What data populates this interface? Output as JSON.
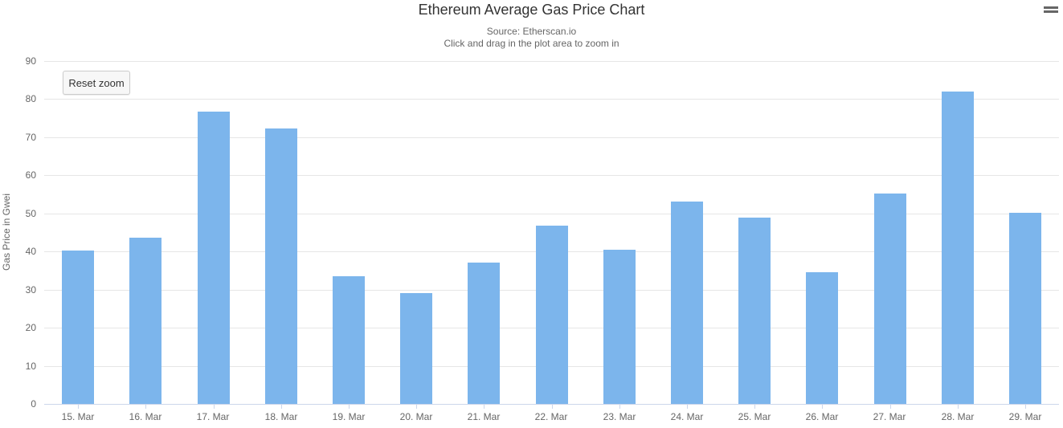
{
  "toolbar": {
    "reset_zoom_label": "Reset zoom",
    "menu_icon": "hamburger-icon"
  },
  "chart_data": {
    "type": "bar",
    "title": "Ethereum Average Gas Price Chart",
    "subtitle": [
      "Source: Etherscan.io",
      "Click and drag in the plot area to zoom in"
    ],
    "categories": [
      "15. Mar",
      "16. Mar",
      "17. Mar",
      "18. Mar",
      "19. Mar",
      "20. Mar",
      "21. Mar",
      "22. Mar",
      "23. Mar",
      "24. Mar",
      "25. Mar",
      "26. Mar",
      "27. Mar",
      "28. Mar",
      "29. Mar"
    ],
    "values": [
      40.2,
      43.6,
      76.8,
      72.3,
      33.5,
      29.1,
      37.1,
      46.8,
      40.4,
      53.2,
      48.8,
      34.5,
      55.2,
      82.0,
      50.2
    ],
    "xlabel": "",
    "ylabel": "Gas Price in Gwei",
    "ylim": [
      0,
      90
    ],
    "ytick_step": 10,
    "grid": true,
    "legend": "none",
    "colors": {
      "bar": "#7cb5ec",
      "title": "#333333",
      "subtitle": "#666666",
      "axis_labels": "#666666",
      "gridline": "#e6e6e6",
      "axis_line": "#ccd6eb",
      "menu_icon": "#666666"
    }
  }
}
